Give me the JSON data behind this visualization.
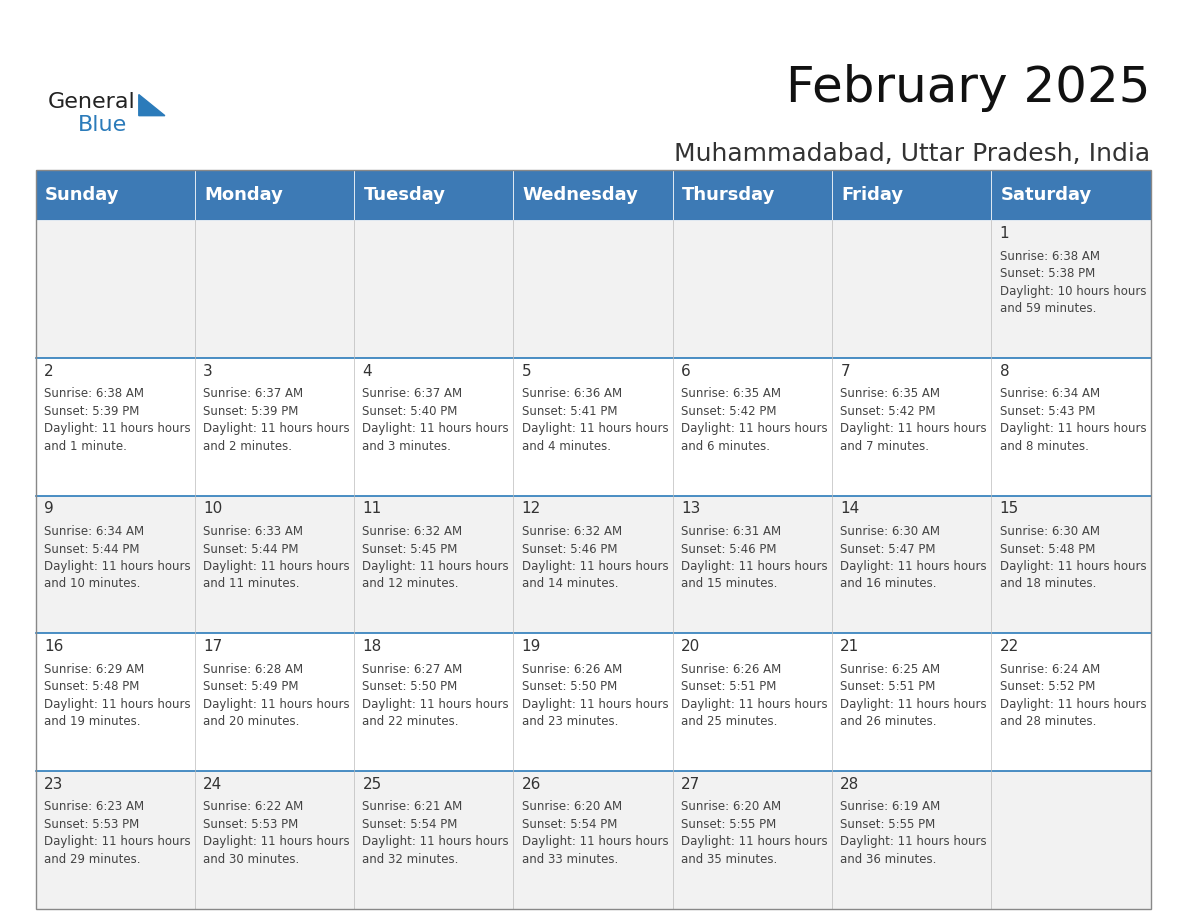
{
  "title": "February 2025",
  "subtitle": "Muhammadabad, Uttar Pradesh, India",
  "header_color": "#3d7ab5",
  "header_text_color": "#ffffff",
  "cell_bg_even": "#f2f2f2",
  "cell_bg_odd": "#ffffff",
  "day_headers": [
    "Sunday",
    "Monday",
    "Tuesday",
    "Wednesday",
    "Thursday",
    "Friday",
    "Saturday"
  ],
  "title_fontsize": 36,
  "subtitle_fontsize": 18,
  "header_fontsize": 13,
  "cell_day_fontsize": 11,
  "cell_info_fontsize": 8.5,
  "days": [
    {
      "day": 1,
      "col": 6,
      "row": 0,
      "sunrise": "6:38 AM",
      "sunset": "5:38 PM",
      "daylight": "10 hours and 59 minutes."
    },
    {
      "day": 2,
      "col": 0,
      "row": 1,
      "sunrise": "6:38 AM",
      "sunset": "5:39 PM",
      "daylight": "11 hours and 1 minute."
    },
    {
      "day": 3,
      "col": 1,
      "row": 1,
      "sunrise": "6:37 AM",
      "sunset": "5:39 PM",
      "daylight": "11 hours and 2 minutes."
    },
    {
      "day": 4,
      "col": 2,
      "row": 1,
      "sunrise": "6:37 AM",
      "sunset": "5:40 PM",
      "daylight": "11 hours and 3 minutes."
    },
    {
      "day": 5,
      "col": 3,
      "row": 1,
      "sunrise": "6:36 AM",
      "sunset": "5:41 PM",
      "daylight": "11 hours and 4 minutes."
    },
    {
      "day": 6,
      "col": 4,
      "row": 1,
      "sunrise": "6:35 AM",
      "sunset": "5:42 PM",
      "daylight": "11 hours and 6 minutes."
    },
    {
      "day": 7,
      "col": 5,
      "row": 1,
      "sunrise": "6:35 AM",
      "sunset": "5:42 PM",
      "daylight": "11 hours and 7 minutes."
    },
    {
      "day": 8,
      "col": 6,
      "row": 1,
      "sunrise": "6:34 AM",
      "sunset": "5:43 PM",
      "daylight": "11 hours and 8 minutes."
    },
    {
      "day": 9,
      "col": 0,
      "row": 2,
      "sunrise": "6:34 AM",
      "sunset": "5:44 PM",
      "daylight": "11 hours and 10 minutes."
    },
    {
      "day": 10,
      "col": 1,
      "row": 2,
      "sunrise": "6:33 AM",
      "sunset": "5:44 PM",
      "daylight": "11 hours and 11 minutes."
    },
    {
      "day": 11,
      "col": 2,
      "row": 2,
      "sunrise": "6:32 AM",
      "sunset": "5:45 PM",
      "daylight": "11 hours and 12 minutes."
    },
    {
      "day": 12,
      "col": 3,
      "row": 2,
      "sunrise": "6:32 AM",
      "sunset": "5:46 PM",
      "daylight": "11 hours and 14 minutes."
    },
    {
      "day": 13,
      "col": 4,
      "row": 2,
      "sunrise": "6:31 AM",
      "sunset": "5:46 PM",
      "daylight": "11 hours and 15 minutes."
    },
    {
      "day": 14,
      "col": 5,
      "row": 2,
      "sunrise": "6:30 AM",
      "sunset": "5:47 PM",
      "daylight": "11 hours and 16 minutes."
    },
    {
      "day": 15,
      "col": 6,
      "row": 2,
      "sunrise": "6:30 AM",
      "sunset": "5:48 PM",
      "daylight": "11 hours and 18 minutes."
    },
    {
      "day": 16,
      "col": 0,
      "row": 3,
      "sunrise": "6:29 AM",
      "sunset": "5:48 PM",
      "daylight": "11 hours and 19 minutes."
    },
    {
      "day": 17,
      "col": 1,
      "row": 3,
      "sunrise": "6:28 AM",
      "sunset": "5:49 PM",
      "daylight": "11 hours and 20 minutes."
    },
    {
      "day": 18,
      "col": 2,
      "row": 3,
      "sunrise": "6:27 AM",
      "sunset": "5:50 PM",
      "daylight": "11 hours and 22 minutes."
    },
    {
      "day": 19,
      "col": 3,
      "row": 3,
      "sunrise": "6:26 AM",
      "sunset": "5:50 PM",
      "daylight": "11 hours and 23 minutes."
    },
    {
      "day": 20,
      "col": 4,
      "row": 3,
      "sunrise": "6:26 AM",
      "sunset": "5:51 PM",
      "daylight": "11 hours and 25 minutes."
    },
    {
      "day": 21,
      "col": 5,
      "row": 3,
      "sunrise": "6:25 AM",
      "sunset": "5:51 PM",
      "daylight": "11 hours and 26 minutes."
    },
    {
      "day": 22,
      "col": 6,
      "row": 3,
      "sunrise": "6:24 AM",
      "sunset": "5:52 PM",
      "daylight": "11 hours and 28 minutes."
    },
    {
      "day": 23,
      "col": 0,
      "row": 4,
      "sunrise": "6:23 AM",
      "sunset": "5:53 PM",
      "daylight": "11 hours and 29 minutes."
    },
    {
      "day": 24,
      "col": 1,
      "row": 4,
      "sunrise": "6:22 AM",
      "sunset": "5:53 PM",
      "daylight": "11 hours and 30 minutes."
    },
    {
      "day": 25,
      "col": 2,
      "row": 4,
      "sunrise": "6:21 AM",
      "sunset": "5:54 PM",
      "daylight": "11 hours and 32 minutes."
    },
    {
      "day": 26,
      "col": 3,
      "row": 4,
      "sunrise": "6:20 AM",
      "sunset": "5:54 PM",
      "daylight": "11 hours and 33 minutes."
    },
    {
      "day": 27,
      "col": 4,
      "row": 4,
      "sunrise": "6:20 AM",
      "sunset": "5:55 PM",
      "daylight": "11 hours and 35 minutes."
    },
    {
      "day": 28,
      "col": 5,
      "row": 4,
      "sunrise": "6:19 AM",
      "sunset": "5:55 PM",
      "daylight": "11 hours and 36 minutes."
    }
  ],
  "logo_text1": "General",
  "logo_text2": "Blue",
  "logo_color1": "#222222",
  "logo_color2": "#2b7bba",
  "logo_triangle_color": "#2b7bba",
  "row_divider_color": "#2b7bba",
  "col_divider_color": "#bbbbbb",
  "outer_border_color": "#888888"
}
